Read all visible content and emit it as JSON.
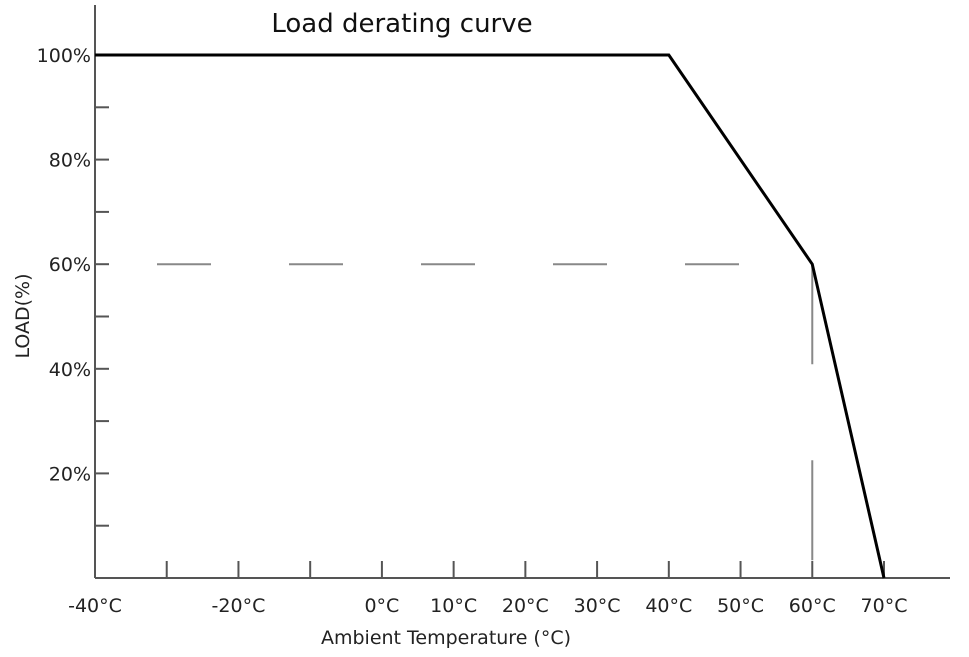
{
  "chart_data": {
    "type": "line",
    "title": "Load derating curve",
    "xlabel": "Ambient Temperature  (°C)",
    "ylabel": "LOAD(%)",
    "x_ticks": [
      -40,
      -30,
      -20,
      -10,
      0,
      10,
      20,
      30,
      40,
      50,
      60,
      70
    ],
    "x_tick_labels": [
      "-40°C",
      "",
      "-20°C",
      "",
      "0°C",
      "10°C",
      "20°C",
      "30°C",
      "40°C",
      "50°C",
      "60°C",
      "70°C"
    ],
    "y_ticks": [
      10,
      20,
      30,
      40,
      50,
      60,
      70,
      80,
      90,
      100
    ],
    "y_tick_labels": [
      "",
      "20%",
      "",
      "40%",
      "",
      "60%",
      "",
      "80%",
      "",
      "100%"
    ],
    "xlim": [
      -40,
      76
    ],
    "ylim": [
      0,
      100
    ],
    "series": [
      {
        "x": [
          -40,
          40,
          60,
          70
        ],
        "y": [
          100,
          100,
          60,
          0
        ],
        "color": "#000000"
      }
    ],
    "reference_lines": [
      {
        "orientation": "horizontal",
        "y": 60,
        "x_from": -40,
        "x_to": 60,
        "style": "dashed"
      },
      {
        "orientation": "vertical",
        "x": 60,
        "y_from": 0,
        "y_to": 60,
        "style": "dashed"
      }
    ],
    "grid": false,
    "legend": "none"
  }
}
